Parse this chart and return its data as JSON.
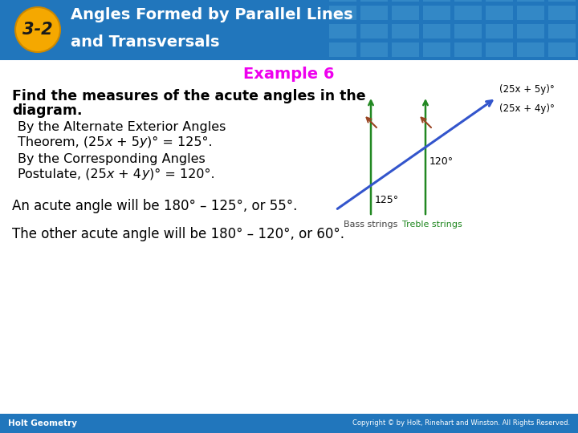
{
  "header_bg_color": "#2176bc",
  "header_text_color": "#ffffff",
  "badge_bg_color": "#f5a800",
  "badge_text": "3-2",
  "badge_text_color": "#1a1a1a",
  "example_label": "Example 6",
  "example_color": "#ee00ee",
  "body_bg_color": "#ffffff",
  "footer_bg_color": "#2176bc",
  "footer_left": "Holt Geometry",
  "footer_right": "Copyright © by Holt, Rinehart and Winston. All Rights Reserved.",
  "footer_text_color": "#ffffff",
  "line3": "An acute angle will be 180° – 125°, or 55°.",
  "line4": "The other acute angle will be 180° – 120°, or 60°.",
  "diagram_line_color": "#3355cc",
  "diagram_parallel_color": "#228822",
  "diagram_tick_color": "#994422",
  "angle_label1": "125°",
  "angle_label2": "120°",
  "expr_label1": "(25x + 5y)°",
  "expr_label2": "(25x + 4y)°",
  "bass_label": "Bass strings",
  "treble_label": "Treble strings",
  "bass_label_color": "#444444",
  "treble_label_color": "#228822",
  "tile_color": "#4a9fd4"
}
